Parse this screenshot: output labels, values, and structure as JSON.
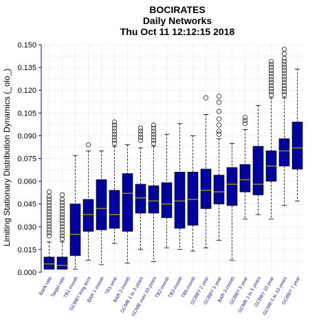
{
  "chart_data": {
    "type": "box",
    "title": "BOCIRATES",
    "subtitle": "Daily Networks",
    "timestamp": "Thu Oct 11 12:12:15 2018",
    "ylabel": "Limiting Stationary Distribution Dynamics (_olo_)",
    "ylim": [
      0.0,
      0.15
    ],
    "yticks": [
      "0.000",
      "0.015",
      "0.030",
      "0.045",
      "0.060",
      "0.075",
      "0.090",
      "0.105",
      "0.120",
      "0.135",
      "0.150"
    ],
    "grid": true,
    "colors": {
      "box_fill": "#0000a0",
      "box_edge": "#000000",
      "median": "#8a8a00",
      "axis": "#0000cc",
      "grid": "#d9d9d9",
      "tick_label": "#1a1a8c"
    },
    "categories": [
      "Bank rate",
      "Target rate",
      "TB1-month",
      "GCBBY long term",
      "BAR 1-month",
      "TB1-year",
      "BAR 2-month",
      "GCMB 1 to 3 years",
      "GCMB over 10 years",
      "TB2-month",
      "TB3-month",
      "TB6-month",
      "GCBBY 2 year",
      "GCBBY 3 year",
      "BAR 3-month",
      "GCBBY 5 year",
      "GCMB 3 to 5 years",
      "GCBBY 10 year",
      "GCMB 5 to 10 years",
      "GCBBY 7 year"
    ],
    "boxes": [
      {
        "lower": 0.002,
        "q1": 0.002,
        "median": 0.0055,
        "q3": 0.01,
        "upper": 0.02,
        "outliers": [
          0.024,
          0.026,
          0.028,
          0.03,
          0.032,
          0.034,
          0.036,
          0.038,
          0.04,
          0.042,
          0.044,
          0.046,
          0.048,
          0.05,
          0.053
        ]
      },
      {
        "lower": 0.002,
        "q1": 0.002,
        "median": 0.0045,
        "q3": 0.01,
        "upper": 0.02,
        "outliers": [
          0.022,
          0.024,
          0.026,
          0.028,
          0.03,
          0.032,
          0.034,
          0.036,
          0.038,
          0.04,
          0.042,
          0.044,
          0.046,
          0.048,
          0.051
        ]
      },
      {
        "lower": 0.002,
        "q1": 0.011,
        "median": 0.025,
        "q3": 0.045,
        "upper": 0.077,
        "outliers": []
      },
      {
        "lower": 0.008,
        "q1": 0.027,
        "median": 0.038,
        "q3": 0.048,
        "upper": 0.08,
        "outliers": [
          0.084
        ]
      },
      {
        "lower": 0.005,
        "q1": 0.028,
        "median": 0.042,
        "q3": 0.061,
        "upper": 0.08,
        "outliers": []
      },
      {
        "lower": 0.019,
        "q1": 0.029,
        "median": 0.038,
        "q3": 0.054,
        "upper": 0.083,
        "outliers": [
          0.085,
          0.087,
          0.089,
          0.091,
          0.093,
          0.095,
          0.097,
          0.099
        ]
      },
      {
        "lower": 0.006,
        "q1": 0.027,
        "median": 0.052,
        "q3": 0.065,
        "upper": 0.084,
        "outliers": []
      },
      {
        "lower": 0.015,
        "q1": 0.039,
        "median": 0.049,
        "q3": 0.058,
        "upper": 0.082,
        "outliers": [
          0.087,
          0.089,
          0.091,
          0.093,
          0.095
        ]
      },
      {
        "lower": 0.007,
        "q1": 0.039,
        "median": 0.047,
        "q3": 0.057,
        "upper": 0.083,
        "outliers": [
          0.085,
          0.087,
          0.089,
          0.091,
          0.093,
          0.095,
          0.097
        ]
      },
      {
        "lower": 0.016,
        "q1": 0.036,
        "median": 0.045,
        "q3": 0.059,
        "upper": 0.091,
        "outliers": []
      },
      {
        "lower": 0.015,
        "q1": 0.029,
        "median": 0.047,
        "q3": 0.066,
        "upper": 0.098,
        "outliers": []
      },
      {
        "lower": 0.014,
        "q1": 0.031,
        "median": 0.048,
        "q3": 0.066,
        "upper": 0.09,
        "outliers": []
      },
      {
        "lower": 0.016,
        "q1": 0.042,
        "median": 0.054,
        "q3": 0.068,
        "upper": 0.104,
        "outliers": [
          0.115
        ]
      },
      {
        "lower": 0.021,
        "q1": 0.045,
        "median": 0.053,
        "q3": 0.064,
        "upper": 0.088,
        "outliers": [
          0.091,
          0.093,
          0.097,
          0.101,
          0.106,
          0.112,
          0.116
        ]
      },
      {
        "lower": 0.008,
        "q1": 0.044,
        "median": 0.058,
        "q3": 0.069,
        "upper": 0.085,
        "outliers": []
      },
      {
        "lower": 0.035,
        "q1": 0.053,
        "median": 0.061,
        "q3": 0.071,
        "upper": 0.094,
        "outliers": [
          0.098,
          0.1,
          0.102
        ]
      },
      {
        "lower": 0.038,
        "q1": 0.051,
        "median": 0.058,
        "q3": 0.083,
        "upper": 0.11,
        "outliers": []
      },
      {
        "lower": 0.035,
        "q1": 0.06,
        "median": 0.07,
        "q3": 0.08,
        "upper": 0.115,
        "outliers": [
          0.117,
          0.119,
          0.121,
          0.123,
          0.125,
          0.127,
          0.129,
          0.131,
          0.133,
          0.135,
          0.137,
          0.139
        ]
      },
      {
        "lower": 0.044,
        "q1": 0.07,
        "median": 0.08,
        "q3": 0.088,
        "upper": 0.115,
        "outliers": [
          0.117,
          0.119,
          0.121,
          0.123,
          0.125,
          0.127,
          0.129,
          0.131,
          0.133,
          0.135,
          0.137,
          0.139,
          0.141,
          0.144,
          0.147
        ]
      },
      {
        "lower": 0.047,
        "q1": 0.068,
        "median": 0.082,
        "q3": 0.099,
        "upper": 0.134,
        "outliers": []
      }
    ]
  }
}
